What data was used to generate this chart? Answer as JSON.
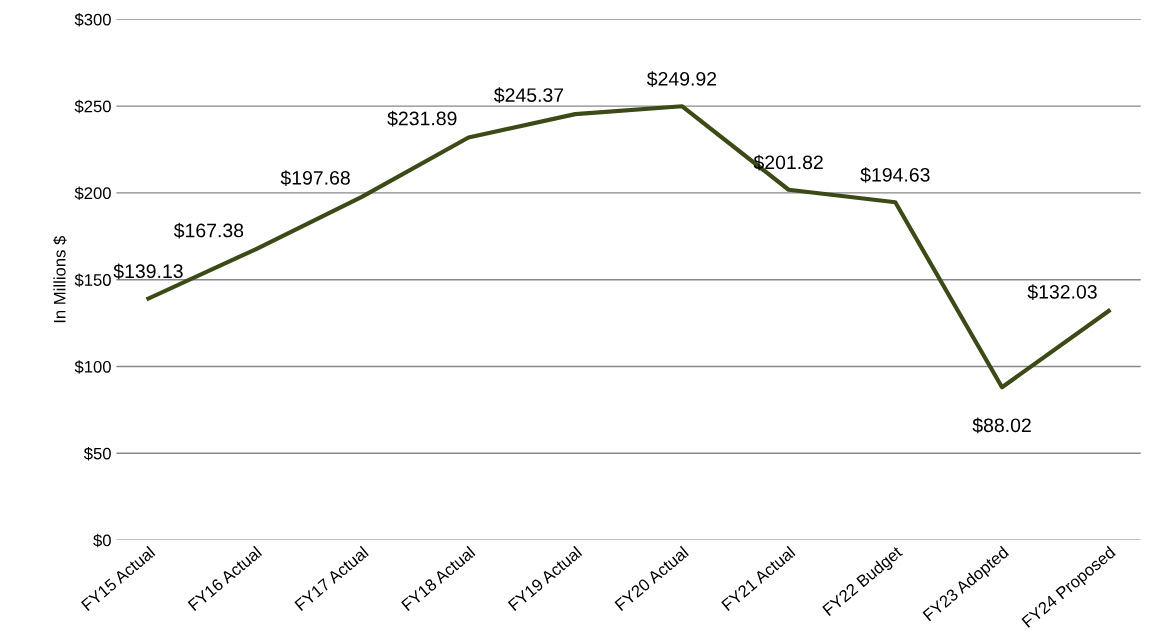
{
  "chart_data": {
    "type": "line",
    "ylabel": "In Millions $",
    "categories": [
      "FY15 Actual",
      "FY16 Actual",
      "FY17 Actual",
      "FY18 Actual",
      "FY19 Actual",
      "FY20 Actual",
      "FY21 Actual",
      "FY22 Budget",
      "FY23 Adopted",
      "FY24 Proposed"
    ],
    "series": [
      {
        "color": "#3b4a17",
        "values": [
          139.13,
          167.38,
          197.68,
          231.89,
          245.37,
          249.92,
          201.82,
          194.63,
          88.02,
          132.03
        ],
        "value_labels": [
          "$139.13",
          "$167.38",
          "$197.68",
          "$231.89",
          "$245.37",
          "$249.92",
          "$201.82",
          "$194.63",
          "$88.02",
          "$132.03"
        ]
      }
    ],
    "ylim": [
      0,
      300
    ],
    "yticks": [
      {
        "value": 0,
        "label": "$0"
      },
      {
        "value": 50,
        "label": "$50"
      },
      {
        "value": 100,
        "label": "$100"
      },
      {
        "value": 150,
        "label": "$150"
      },
      {
        "value": 200,
        "label": "$200"
      },
      {
        "value": 250,
        "label": "$250"
      },
      {
        "value": 300,
        "label": "$300"
      }
    ],
    "grid": "y",
    "marker": "none",
    "line_style": "solid",
    "legend": false
  }
}
